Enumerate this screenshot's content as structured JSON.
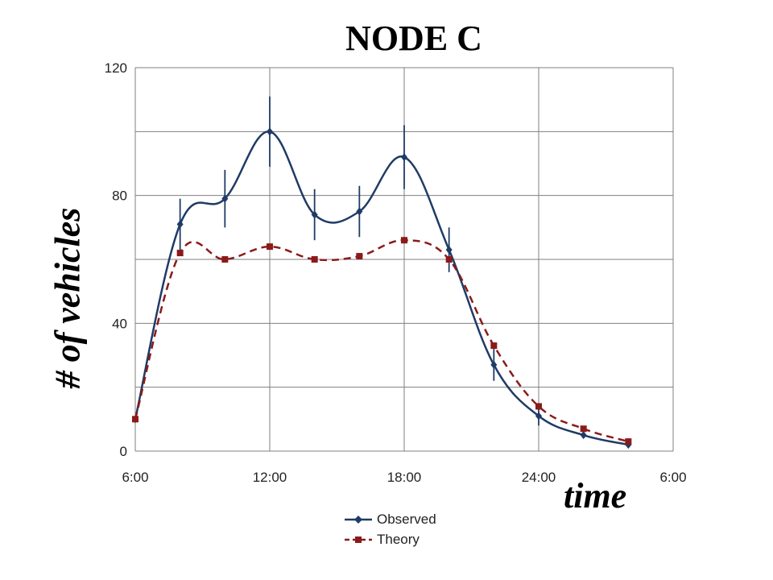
{
  "chart_data": {
    "type": "line",
    "title": "NODE C",
    "xlabel": "time",
    "ylabel": "# of vehicles",
    "x_ticks": [
      "6:00",
      "12:00",
      "18:00",
      "24:00",
      "6:00"
    ],
    "y_ticks": [
      "0",
      "40",
      "80",
      "120"
    ],
    "xlim_hours": [
      6,
      30
    ],
    "ylim": [
      0,
      120
    ],
    "grid": true,
    "legend_position": "bottom",
    "series": [
      {
        "name": "Observed",
        "color": "#1f3b66",
        "marker": "diamond",
        "line_style": "solid",
        "x_hours": [
          6,
          8,
          10,
          12,
          14,
          16,
          18,
          20,
          22,
          24,
          26,
          28
        ],
        "values": [
          10,
          71,
          79,
          100,
          74,
          75,
          92,
          63,
          27,
          11,
          5,
          2
        ],
        "error": [
          0,
          8,
          9,
          11,
          8,
          8,
          10,
          7,
          5,
          3,
          0,
          0
        ]
      },
      {
        "name": "Theory",
        "color": "#8b1a1a",
        "marker": "square",
        "line_style": "dashed",
        "x_hours": [
          6,
          8,
          10,
          12,
          14,
          16,
          18,
          20,
          22,
          24,
          26,
          28
        ],
        "values": [
          10,
          62,
          60,
          64,
          60,
          61,
          66,
          60,
          33,
          14,
          7,
          3
        ]
      }
    ]
  }
}
